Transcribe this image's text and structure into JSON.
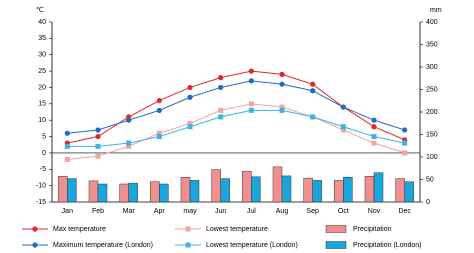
{
  "chart_data": {
    "type": "combo",
    "y_label": "℃",
    "y2_label": "mm",
    "categories": [
      "Jan",
      "Feb",
      "Mar",
      "Apr",
      "may",
      "Jun",
      "Jul",
      "Aug",
      "Sep",
      "Oct",
      "Nov",
      "Dec"
    ],
    "ylim": [
      -15,
      40
    ],
    "yticks": [
      -15,
      -10,
      -5,
      0,
      5,
      10,
      15,
      20,
      25,
      30,
      35,
      40
    ],
    "y2lim": [
      0,
      400
    ],
    "y2ticks": [
      0,
      50,
      100,
      150,
      200,
      250,
      300,
      350,
      400
    ],
    "series": [
      {
        "name": "Max temperature",
        "type": "line",
        "marker": "circle",
        "color": "#e4262b",
        "values": [
          3,
          5,
          11,
          16,
          20,
          23,
          25,
          24,
          21,
          14,
          8,
          4
        ]
      },
      {
        "name": "Lowest temperature",
        "type": "line",
        "marker": "square",
        "color": "#f4a3a3",
        "values": [
          -2,
          -1,
          2,
          6,
          9,
          13,
          15,
          14,
          11,
          7,
          3,
          0
        ]
      },
      {
        "name": "Precipitation",
        "type": "bar",
        "axis": "y2",
        "color": "#f08f8f",
        "values": [
          57,
          47,
          40,
          45,
          55,
          72,
          68,
          78,
          53,
          48,
          57,
          52
        ]
      },
      {
        "name": "Maximum temperature (London)",
        "type": "line",
        "marker": "circle",
        "color": "#1f6cc4",
        "values": [
          6,
          7,
          10,
          13,
          17,
          20,
          22,
          21,
          19,
          14,
          10,
          7
        ]
      },
      {
        "name": "Lowest temperature (London)",
        "type": "line",
        "marker": "square",
        "color": "#3cb4e6",
        "values": [
          2,
          2,
          3,
          5,
          8,
          11,
          13,
          13,
          11,
          8,
          5,
          3
        ]
      },
      {
        "name": "Precipitation (London)",
        "type": "bar",
        "axis": "y2",
        "color": "#1aa6dc",
        "values": [
          52,
          40,
          42,
          40,
          48,
          52,
          56,
          58,
          48,
          55,
          65,
          45
        ]
      }
    ]
  }
}
